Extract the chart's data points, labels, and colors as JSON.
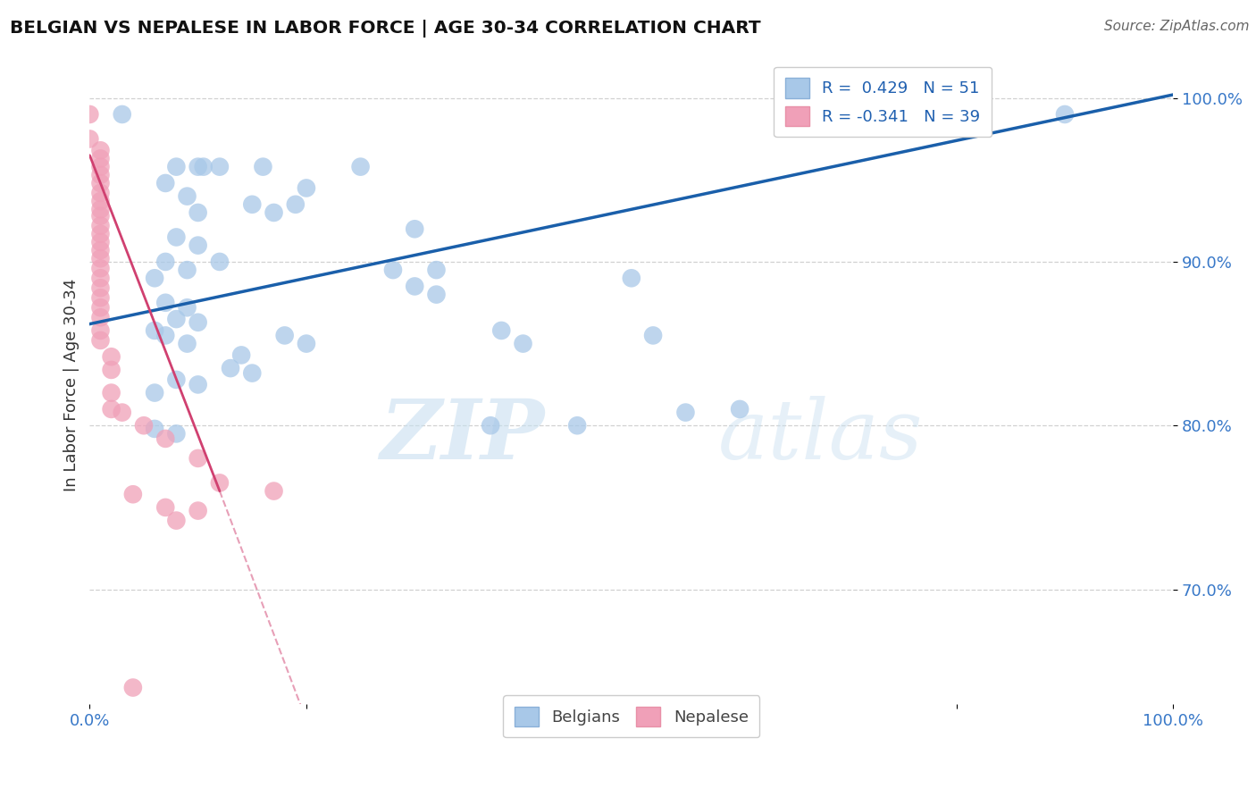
{
  "title": "BELGIAN VS NEPALESE IN LABOR FORCE | AGE 30-34 CORRELATION CHART",
  "source": "Source: ZipAtlas.com",
  "ylabel": "In Labor Force | Age 30-34",
  "xlim": [
    0.0,
    1.0
  ],
  "ylim": [
    0.63,
    1.02
  ],
  "ytick_positions": [
    0.7,
    0.8,
    0.9,
    1.0
  ],
  "ytick_labels": [
    "70.0%",
    "80.0%",
    "90.0%",
    "100.0%"
  ],
  "legend_r_blue": "R =  0.429",
  "legend_n_blue": "N = 51",
  "legend_r_pink": "R = -0.341",
  "legend_n_pink": "N = 39",
  "blue_color": "#a8c8e8",
  "pink_color": "#f0a0b8",
  "blue_line_color": "#1a5faa",
  "pink_line_color": "#d04070",
  "blue_scatter": [
    [
      0.03,
      0.99
    ],
    [
      0.08,
      0.958
    ],
    [
      0.1,
      0.958
    ],
    [
      0.105,
      0.958
    ],
    [
      0.12,
      0.958
    ],
    [
      0.07,
      0.948
    ],
    [
      0.09,
      0.94
    ],
    [
      0.16,
      0.958
    ],
    [
      0.25,
      0.958
    ],
    [
      0.1,
      0.93
    ],
    [
      0.2,
      0.945
    ],
    [
      0.15,
      0.935
    ],
    [
      0.17,
      0.93
    ],
    [
      0.19,
      0.935
    ],
    [
      0.08,
      0.915
    ],
    [
      0.1,
      0.91
    ],
    [
      0.12,
      0.9
    ],
    [
      0.07,
      0.9
    ],
    [
      0.09,
      0.895
    ],
    [
      0.06,
      0.89
    ],
    [
      0.3,
      0.92
    ],
    [
      0.28,
      0.895
    ],
    [
      0.32,
      0.895
    ],
    [
      0.3,
      0.885
    ],
    [
      0.32,
      0.88
    ],
    [
      0.07,
      0.875
    ],
    [
      0.09,
      0.872
    ],
    [
      0.08,
      0.865
    ],
    [
      0.1,
      0.863
    ],
    [
      0.06,
      0.858
    ],
    [
      0.07,
      0.855
    ],
    [
      0.09,
      0.85
    ],
    [
      0.18,
      0.855
    ],
    [
      0.2,
      0.85
    ],
    [
      0.14,
      0.843
    ],
    [
      0.13,
      0.835
    ],
    [
      0.15,
      0.832
    ],
    [
      0.08,
      0.828
    ],
    [
      0.1,
      0.825
    ],
    [
      0.06,
      0.82
    ],
    [
      0.38,
      0.858
    ],
    [
      0.4,
      0.85
    ],
    [
      0.5,
      0.89
    ],
    [
      0.52,
      0.855
    ],
    [
      0.55,
      0.808
    ],
    [
      0.6,
      0.81
    ],
    [
      0.37,
      0.8
    ],
    [
      0.06,
      0.798
    ],
    [
      0.08,
      0.795
    ],
    [
      0.9,
      0.99
    ],
    [
      0.45,
      0.8
    ]
  ],
  "pink_scatter": [
    [
      0.0,
      0.99
    ],
    [
      0.0,
      0.975
    ],
    [
      0.01,
      0.968
    ],
    [
      0.01,
      0.963
    ],
    [
      0.01,
      0.958
    ],
    [
      0.01,
      0.953
    ],
    [
      0.01,
      0.948
    ],
    [
      0.01,
      0.942
    ],
    [
      0.01,
      0.937
    ],
    [
      0.01,
      0.932
    ],
    [
      0.01,
      0.928
    ],
    [
      0.01,
      0.922
    ],
    [
      0.01,
      0.917
    ],
    [
      0.01,
      0.912
    ],
    [
      0.01,
      0.907
    ],
    [
      0.01,
      0.902
    ],
    [
      0.01,
      0.896
    ],
    [
      0.01,
      0.89
    ],
    [
      0.01,
      0.884
    ],
    [
      0.01,
      0.878
    ],
    [
      0.01,
      0.872
    ],
    [
      0.01,
      0.866
    ],
    [
      0.01,
      0.858
    ],
    [
      0.01,
      0.852
    ],
    [
      0.02,
      0.842
    ],
    [
      0.02,
      0.834
    ],
    [
      0.02,
      0.82
    ],
    [
      0.03,
      0.808
    ],
    [
      0.05,
      0.8
    ],
    [
      0.07,
      0.792
    ],
    [
      0.1,
      0.78
    ],
    [
      0.12,
      0.765
    ],
    [
      0.04,
      0.758
    ],
    [
      0.07,
      0.75
    ],
    [
      0.08,
      0.742
    ],
    [
      0.1,
      0.748
    ],
    [
      0.17,
      0.76
    ],
    [
      0.04,
      0.64
    ],
    [
      0.02,
      0.81
    ]
  ],
  "watermark_zip": "ZIP",
  "watermark_atlas": "atlas",
  "grid_color": "#cccccc",
  "background_color": "#ffffff"
}
